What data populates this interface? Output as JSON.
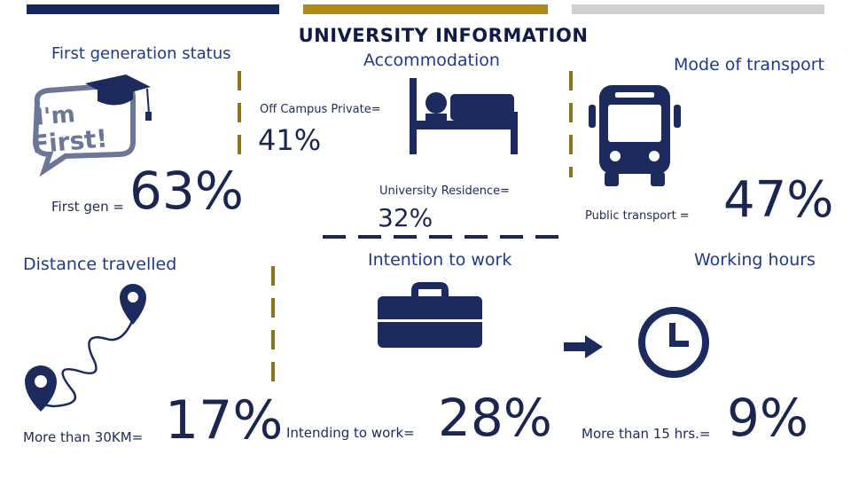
{
  "title": "UNIVERSITY INFORMATION",
  "first_gen": {
    "heading": "First generation status",
    "badge_line1": "I'm",
    "badge_line2": "First!",
    "label": "First gen =",
    "value": "63%"
  },
  "accommodation": {
    "heading": "Accommodation",
    "off_campus_label": "Off Campus Private=",
    "off_campus_value": "41%",
    "residence_label": "University Residence=",
    "residence_value": "32%"
  },
  "transport": {
    "heading": "Mode of transport",
    "label": "Public transport =",
    "value": "47%"
  },
  "distance": {
    "heading": "Distance travelled",
    "label": "More than 30KM=",
    "value": "17%"
  },
  "work_intent": {
    "heading": "Intention to work",
    "label": "Intending to work=",
    "value": "28%"
  },
  "hours": {
    "heading": "Working hours",
    "label": "More than 15 hrs.=",
    "value": "9%"
  },
  "icons": [
    "graduation-cap-icon",
    "bed-icon",
    "bus-icon",
    "map-route-icon",
    "briefcase-icon",
    "arrow-right-icon",
    "clock-icon"
  ],
  "colors": {
    "navy": "#14285f",
    "gold": "#b08a10",
    "grey": "#cfcfcf",
    "icon_navy": "#1c2a5e"
  }
}
